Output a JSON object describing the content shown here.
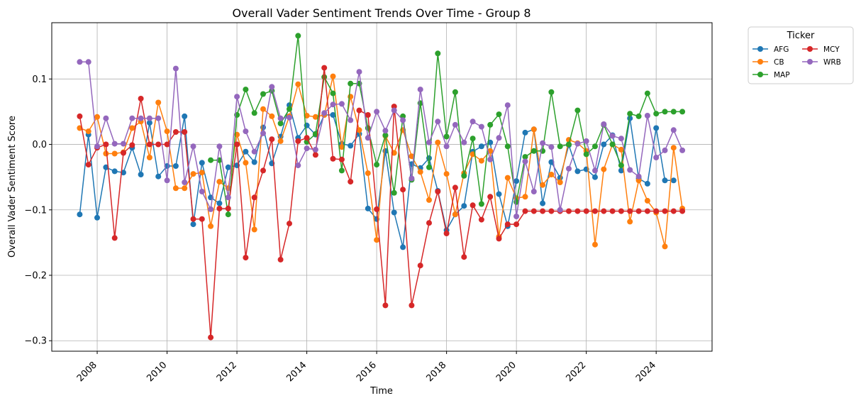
{
  "chart_data": {
    "type": "line",
    "title": "Overall Vader Sentiment Trends Over Time - Group 8",
    "xlabel": "Time",
    "ylabel": "Overall Vader Sentiment Score",
    "x_ticks": [
      "2008",
      "2010",
      "2012",
      "2014",
      "2016",
      "2018",
      "2020",
      "2022",
      "2024"
    ],
    "y_ticks": [
      "−0.3",
      "−0.2",
      "−0.1",
      "0.0",
      "0.1"
    ],
    "xlim": [
      2006.7,
      2025.6
    ],
    "ylim": [
      -0.316,
      0.186
    ],
    "grid": true,
    "legend": {
      "title": "Ticker",
      "placement": "outside right"
    },
    "x_start": 2007.5,
    "x_step": 0.25,
    "series": [
      {
        "name": "AFG",
        "color": "#1f77b4",
        "values": [
          -0.107,
          0.015,
          -0.112,
          -0.035,
          -0.041,
          -0.043,
          -0.005,
          -0.046,
          0.033,
          -0.049,
          -0.033,
          -0.033,
          0.043,
          -0.122,
          -0.028,
          -0.081,
          -0.09,
          -0.035,
          -0.032,
          -0.011,
          -0.027,
          0.026,
          -0.029,
          0.012,
          0.06,
          0.01,
          0.029,
          0.015,
          0.045,
          0.045,
          0.001,
          -0.002,
          0.016,
          -0.098,
          -0.114,
          -0.01,
          -0.104,
          -0.157,
          -0.03,
          -0.036,
          -0.021,
          -0.071,
          -0.131,
          -0.107,
          -0.094,
          -0.011,
          -0.003,
          0.003,
          -0.076,
          -0.125,
          -0.056,
          0.018,
          0.023,
          -0.09,
          -0.027,
          -0.051,
          -0.001,
          -0.041,
          -0.038,
          -0.05,
          0.0,
          0.014,
          -0.04,
          0.04,
          -0.052,
          -0.06,
          0.025,
          -0.055,
          -0.055
        ]
      },
      {
        "name": "CB",
        "color": "#ff7f0e",
        "values": [
          0.025,
          0.02,
          0.042,
          -0.014,
          -0.014,
          -0.012,
          0.025,
          0.035,
          -0.02,
          0.064,
          0.02,
          -0.067,
          -0.067,
          -0.045,
          -0.043,
          -0.125,
          -0.057,
          -0.067,
          0.015,
          -0.028,
          -0.13,
          0.054,
          0.043,
          0.005,
          0.043,
          0.092,
          0.044,
          0.042,
          0.045,
          0.104,
          -0.004,
          0.073,
          0.022,
          -0.044,
          -0.146,
          0.013,
          -0.013,
          0.022,
          -0.018,
          -0.042,
          -0.085,
          0.003,
          -0.045,
          -0.107,
          -0.044,
          -0.015,
          -0.025,
          -0.01,
          -0.141,
          -0.051,
          -0.082,
          -0.08,
          0.023,
          -0.062,
          -0.046,
          -0.058,
          0.007,
          0.002,
          -0.01,
          -0.153,
          -0.038,
          0.0,
          -0.008,
          -0.118,
          -0.055,
          -0.086,
          -0.104,
          -0.156,
          -0.005,
          -0.098
        ]
      },
      {
        "name": "MAP",
        "color": "#2ca02c",
        "values": [
          -0.024,
          -0.024,
          -0.107,
          0.045,
          0.084,
          0.048,
          0.077,
          0.082,
          0.032,
          0.054,
          0.166,
          0.004,
          0.016,
          0.103,
          0.078,
          -0.04,
          0.093,
          0.093,
          0.025,
          -0.031,
          0.014,
          -0.074,
          0.043,
          -0.054,
          0.063,
          -0.035,
          0.139,
          0.012,
          0.08,
          -0.048,
          0.009,
          -0.091,
          0.03,
          0.046,
          -0.003,
          -0.088,
          -0.019,
          -0.01,
          -0.01,
          0.08,
          -0.003,
          0.0,
          0.052,
          -0.015,
          -0.003,
          0.03,
          0.0,
          -0.032,
          0.047,
          0.043,
          0.078,
          0.047,
          0.05,
          0.05,
          0.05
        ],
        "x_start": 2011.25
      },
      {
        "name": "MCY",
        "color": "#d62728",
        "values": [
          0.043,
          -0.031,
          -0.005,
          0.0,
          -0.143,
          -0.013,
          -0.001,
          0.07,
          0.0,
          0.0,
          0.0,
          0.019,
          0.019,
          -0.114,
          -0.114,
          -0.295,
          -0.098,
          -0.098,
          0.0,
          -0.173,
          -0.081,
          -0.04,
          0.008,
          -0.176,
          -0.121,
          0.005,
          0.01,
          -0.016,
          0.117,
          -0.022,
          -0.023,
          -0.057,
          0.052,
          0.045,
          -0.099,
          -0.246,
          0.058,
          -0.069,
          -0.246,
          -0.185,
          -0.12,
          -0.072,
          -0.136,
          -0.066,
          -0.172,
          -0.093,
          -0.115,
          -0.08,
          -0.144,
          -0.122,
          -0.122,
          -0.102,
          -0.102,
          -0.102,
          -0.102,
          -0.102,
          -0.102,
          -0.102,
          -0.102,
          -0.102,
          -0.102,
          -0.102,
          -0.102,
          -0.102,
          -0.102,
          -0.102,
          -0.102,
          -0.102,
          -0.102,
          -0.102
        ]
      },
      {
        "name": "WRB",
        "color": "#9467bd",
        "values": [
          0.126,
          0.126,
          -0.003,
          0.04,
          0.001,
          0.001,
          0.04,
          0.04,
          0.04,
          0.04,
          -0.055,
          0.116,
          -0.058,
          -0.003,
          -0.072,
          -0.099,
          -0.003,
          -0.081,
          0.073,
          0.02,
          -0.011,
          0.017,
          0.088,
          0.04,
          0.041,
          -0.032,
          -0.006,
          -0.008,
          0.048,
          0.061,
          0.062,
          0.037,
          0.111,
          0.01,
          0.05,
          0.021,
          0.052,
          0.037,
          -0.052,
          0.084,
          0.003,
          0.035,
          -0.003,
          0.03,
          0.003,
          0.035,
          0.027,
          -0.023,
          0.01,
          0.06,
          -0.11,
          -0.026,
          -0.072,
          0.002,
          -0.004,
          -0.1,
          -0.037,
          0.001,
          0.005,
          -0.04,
          0.031,
          0.013,
          0.009,
          -0.039,
          -0.049,
          0.044,
          -0.02,
          -0.009,
          0.022,
          -0.009
        ]
      }
    ]
  }
}
